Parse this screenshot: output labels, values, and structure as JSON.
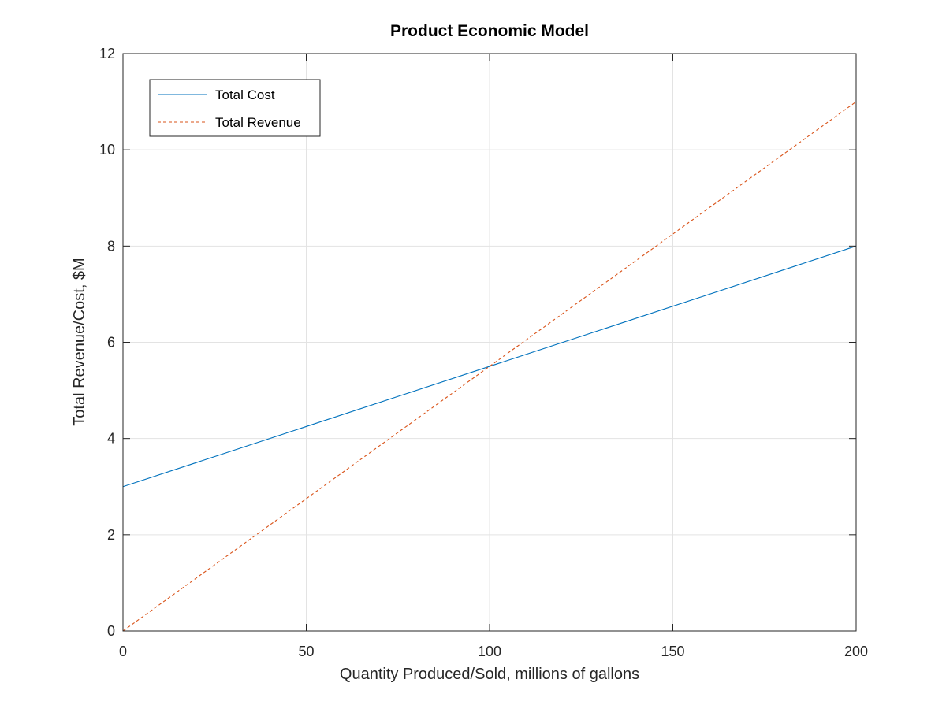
{
  "chart_data": {
    "type": "line",
    "title": "Product Economic Model",
    "xlabel": "Quantity Produced/Sold, millions of gallons",
    "ylabel": "Total Revenue/Cost, $M",
    "xlim": [
      0,
      200
    ],
    "ylim": [
      0,
      12
    ],
    "xticks": [
      0,
      50,
      100,
      150,
      200
    ],
    "xtick_labels": [
      "0",
      "50",
      "100",
      "150",
      "200"
    ],
    "yticks": [
      0,
      2,
      4,
      6,
      8,
      10,
      12
    ],
    "ytick_labels": [
      "0",
      "2",
      "4",
      "6",
      "8",
      "10",
      "12"
    ],
    "grid": true,
    "legend_position": "top-left",
    "series": [
      {
        "name": "Total Cost",
        "x": [
          0,
          200
        ],
        "y": [
          3,
          8
        ],
        "color": "#0072BD",
        "line_style": "solid"
      },
      {
        "name": "Total Revenue",
        "x": [
          0,
          200
        ],
        "y": [
          0,
          11
        ],
        "color": "#D95319",
        "line_style": "dashed"
      }
    ]
  }
}
